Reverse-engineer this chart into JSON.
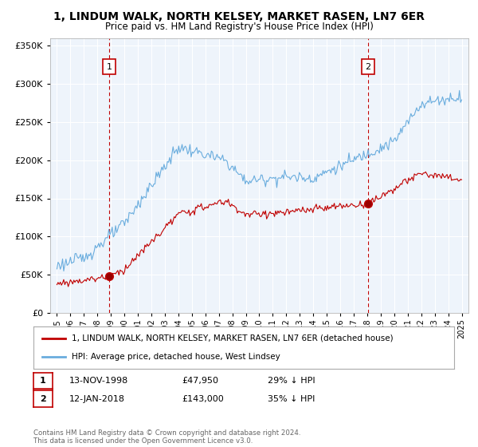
{
  "title": "1, LINDUM WALK, NORTH KELSEY, MARKET RASEN, LN7 6ER",
  "subtitle": "Price paid vs. HM Land Registry's House Price Index (HPI)",
  "legend_line1": "1, LINDUM WALK, NORTH KELSEY, MARKET RASEN, LN7 6ER (detached house)",
  "legend_line2": "HPI: Average price, detached house, West Lindsey",
  "annotation1_date": "13-NOV-1998",
  "annotation1_price": "£47,950",
  "annotation1_hpi": "29% ↓ HPI",
  "annotation2_date": "12-JAN-2018",
  "annotation2_price": "£143,000",
  "annotation2_hpi": "35% ↓ HPI",
  "footer": "Contains HM Land Registry data © Crown copyright and database right 2024.\nThis data is licensed under the Open Government Licence v3.0.",
  "sale1_year": 1998.87,
  "sale1_price": 47950,
  "sale2_year": 2018.04,
  "sale2_price": 143000,
  "hpi_color": "#6aadde",
  "price_color": "#c00000",
  "dashed_line_color": "#c00000",
  "background_color": "#ffffff",
  "grid_color": "#c8d8e8",
  "fill_color": "#ddeeff",
  "ylim_max": 360000,
  "ylim_min": 0,
  "xlim_min": 1994.5,
  "xlim_max": 2025.5
}
